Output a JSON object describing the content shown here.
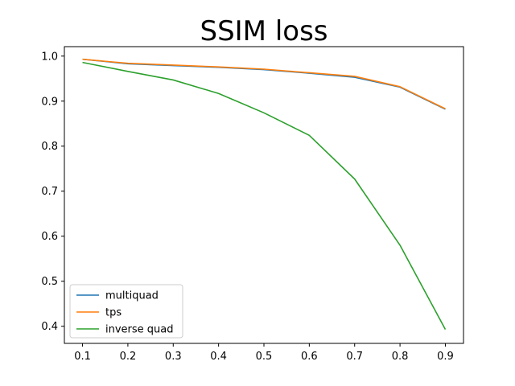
{
  "chart_data": {
    "type": "line",
    "title": "SSIM loss",
    "xlabel": "",
    "ylabel": "",
    "x": [
      0.1,
      0.2,
      0.3,
      0.4,
      0.5,
      0.6,
      0.7,
      0.8,
      0.9
    ],
    "xticks": [
      "0.1",
      "0.2",
      "0.3",
      "0.4",
      "0.5",
      "0.6",
      "0.7",
      "0.8",
      "0.9"
    ],
    "yticks": [
      "0.4",
      "0.5",
      "0.6",
      "0.7",
      "0.8",
      "0.9",
      "1.0"
    ],
    "xlim": [
      0.06,
      0.94
    ],
    "ylim": [
      0.362,
      1.021
    ],
    "grid": false,
    "legend_position": "lower-left",
    "series": [
      {
        "name": "multiquad",
        "color": "#1f77b4",
        "values": [
          0.993,
          0.983,
          0.979,
          0.975,
          0.97,
          0.962,
          0.953,
          0.931,
          0.882
        ]
      },
      {
        "name": "tps",
        "color": "#ff7f0e",
        "values": [
          0.993,
          0.984,
          0.98,
          0.976,
          0.971,
          0.963,
          0.955,
          0.932,
          0.883
        ]
      },
      {
        "name": "inverse quad",
        "color": "#2ca02c",
        "values": [
          0.986,
          0.966,
          0.947,
          0.917,
          0.874,
          0.824,
          0.727,
          0.58,
          0.393
        ]
      }
    ]
  }
}
